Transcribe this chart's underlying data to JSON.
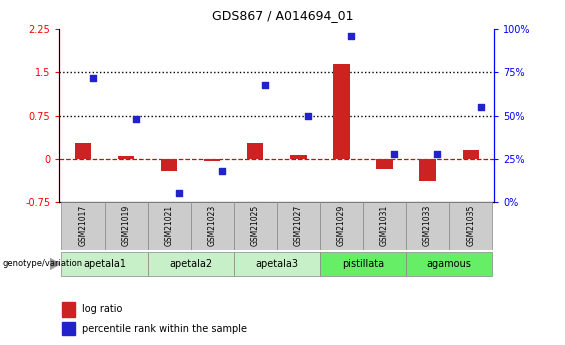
{
  "title": "GDS867 / A014694_01",
  "samples": [
    "GSM21017",
    "GSM21019",
    "GSM21021",
    "GSM21023",
    "GSM21025",
    "GSM21027",
    "GSM21029",
    "GSM21031",
    "GSM21033",
    "GSM21035"
  ],
  "log_ratio": [
    0.28,
    0.05,
    -0.22,
    -0.04,
    0.28,
    0.07,
    1.65,
    -0.18,
    -0.38,
    0.15
  ],
  "percentile": [
    72,
    48,
    5,
    18,
    68,
    50,
    96,
    28,
    28,
    55
  ],
  "groups": [
    {
      "label": "apetala1",
      "samples": [
        "GSM21017",
        "GSM21019"
      ],
      "color": "#c8f0c8"
    },
    {
      "label": "apetala2",
      "samples": [
        "GSM21021",
        "GSM21023"
      ],
      "color": "#c8f0c8"
    },
    {
      "label": "apetala3",
      "samples": [
        "GSM21025",
        "GSM21027"
      ],
      "color": "#c8f0c8"
    },
    {
      "label": "pistillata",
      "samples": [
        "GSM21029",
        "GSM21031"
      ],
      "color": "#66ee66"
    },
    {
      "label": "agamous",
      "samples": [
        "GSM21033",
        "GSM21035"
      ],
      "color": "#66ee66"
    }
  ],
  "left_ylim": [
    -0.75,
    2.25
  ],
  "right_ylim": [
    0,
    100
  ],
  "left_yticks": [
    -0.75,
    0,
    0.75,
    1.5,
    2.25
  ],
  "right_yticks": [
    0,
    25,
    50,
    75,
    100
  ],
  "hlines": [
    0,
    0.75,
    1.5
  ],
  "hline_styles": [
    "dashed",
    "dotted",
    "dotted"
  ],
  "hline_colors": [
    "#dd0000",
    "black",
    "black"
  ],
  "bar_color": "#cc2222",
  "dot_color": "#2222cc",
  "bar_width": 0.38,
  "dot_size": 22,
  "genotype_label": "genotype/variation",
  "legend_bar": "log ratio",
  "legend_dot": "percentile rank within the sample",
  "sample_box_color": "#cccccc",
  "title_fontsize": 9,
  "tick_fontsize": 7,
  "label_fontsize": 7
}
